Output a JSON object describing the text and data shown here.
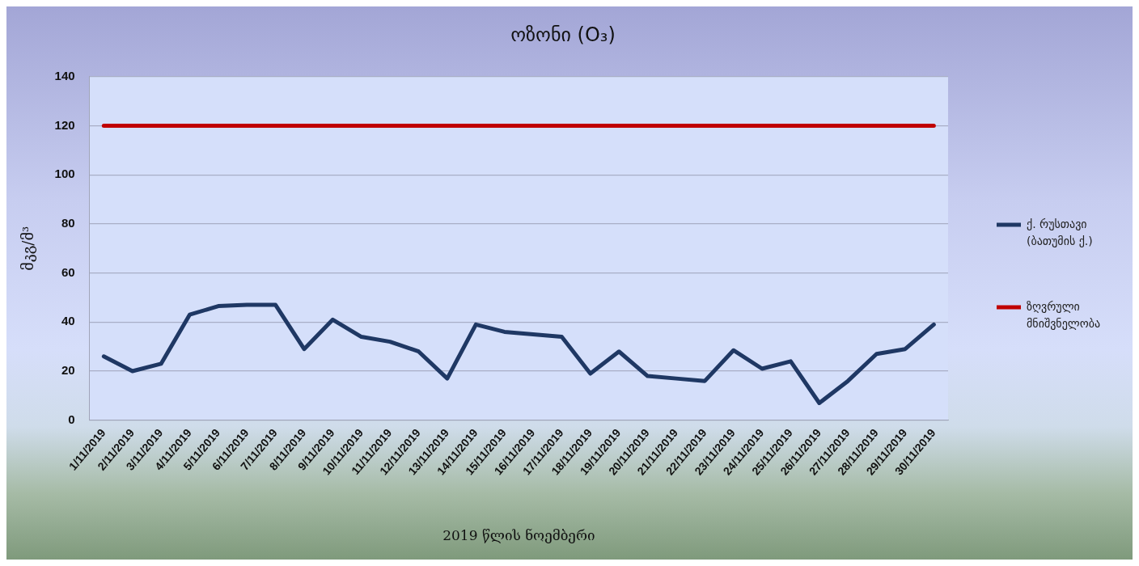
{
  "chart_data": {
    "type": "line",
    "title": "ოზონი (O₃)",
    "xlabel": "2019 წლის ნოემბერი",
    "ylabel": "მკგ/მ³",
    "categories": [
      "1/11/2019",
      "2/11/2019",
      "3/11/2019",
      "4/11/2019",
      "5/11/2019",
      "6/11/2019",
      "7/11/2019",
      "8/11/2019",
      "9/11/2019",
      "10/11/2019",
      "11/11/2019",
      "12/11/2019",
      "13/11/2019",
      "14/11/2019",
      "15/11/2019",
      "16/11/2019",
      "17/11/2019",
      "18/11/2019",
      "19/11/2019",
      "20/11/2019",
      "21/11/2019",
      "22/11/2019",
      "23/11/2019",
      "24/11/2019",
      "25/11/2019",
      "26/11/2019",
      "27/11/2019",
      "28/11/2019",
      "29/11/2019",
      "30/11/2019"
    ],
    "series": [
      {
        "name": "ქ. რუსთავი (ბათუმის ქ.)",
        "color": "#1f3864",
        "values": [
          26,
          20,
          23,
          43,
          46.5,
          47,
          47,
          29,
          41,
          34,
          32,
          28,
          17,
          39,
          36,
          35,
          34,
          19,
          28,
          18,
          17,
          16,
          28.5,
          21,
          24,
          7,
          16,
          27,
          29,
          39
        ]
      },
      {
        "name": "ზღვრული მნიშვნელობა",
        "color": "#c00000",
        "values": [
          120,
          120,
          120,
          120,
          120,
          120,
          120,
          120,
          120,
          120,
          120,
          120,
          120,
          120,
          120,
          120,
          120,
          120,
          120,
          120,
          120,
          120,
          120,
          120,
          120,
          120,
          120,
          120,
          120,
          120
        ]
      }
    ],
    "ylim": [
      0,
      140
    ],
    "yticks": [
      0,
      20,
      40,
      60,
      80,
      100,
      120,
      140
    ],
    "grid": "y",
    "legend": "right",
    "marker": "none",
    "line_style": "solid"
  }
}
